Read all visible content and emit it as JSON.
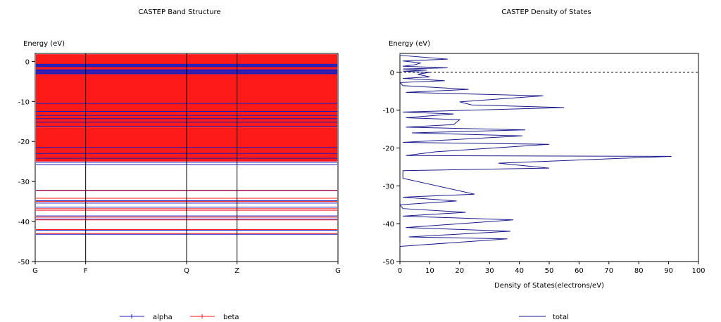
{
  "chart_data": [
    {
      "type": "line",
      "title": "CASTEP Band Structure",
      "ylabel": "Energy (eV)",
      "xlabel": "",
      "ylim": [
        -50,
        2
      ],
      "yticks": [
        0,
        -10,
        -20,
        -30,
        -40,
        -50
      ],
      "kpoints": [
        "G",
        "F",
        "Q",
        "Z",
        "G"
      ],
      "kpoint_positions": [
        0,
        1,
        3,
        4,
        6
      ],
      "series": [
        {
          "name": "alpha",
          "color": "#1f1fbf"
        },
        {
          "name": "beta",
          "color": "#ff1a1a"
        }
      ],
      "red_fill_bands": [
        [
          -4.5,
          1.8
        ],
        [
          -16.5,
          -4.5
        ],
        [
          -25,
          -16.5
        ]
      ],
      "alpha_levels": [
        -0.8,
        -1.2,
        -2.2,
        -2.6,
        -3.0,
        -10.5,
        -12.5,
        -13.5,
        -14.3,
        -15.2,
        -16.2,
        -21.5,
        -23.0,
        -24.2,
        -25.2,
        -25.8,
        -32.2,
        -34.8,
        -35.4,
        -36.4,
        -38.6,
        -39.4,
        -42.2,
        -43.2
      ],
      "beta_levels": [
        -32.3,
        -34.2,
        -35.0,
        -36.8,
        -37.2,
        -38.9,
        -39.6,
        -42.0,
        -43.0
      ]
    },
    {
      "type": "line",
      "title": "CASTEP Density of States",
      "ylabel": "Energy (eV)",
      "xlabel": "Density of States(electrons/eV)",
      "xlim": [
        0,
        100
      ],
      "ylim": [
        -50,
        5
      ],
      "xticks": [
        0,
        10,
        20,
        30,
        40,
        50,
        60,
        70,
        80,
        90,
        100
      ],
      "yticks": [
        0,
        -10,
        -20,
        -30,
        -40,
        -50
      ],
      "fermi_level": 0,
      "series": [
        {
          "name": "total",
          "color": "#1a1a8c",
          "x": [
            0,
            0,
            36,
            3,
            37,
            2,
            38,
            1,
            22,
            1,
            0,
            19,
            1,
            25,
            1,
            1,
            50,
            33,
            91,
            2,
            12,
            50,
            1,
            41,
            4,
            42,
            2,
            18,
            20,
            2,
            18,
            1,
            55,
            24,
            20,
            48,
            2,
            23,
            1,
            0,
            15,
            1,
            10,
            6,
            10,
            1,
            9,
            1,
            16,
            1,
            5,
            7,
            1,
            16,
            0,
            0
          ],
          "y": [
            -45,
            -46,
            -44,
            -43.5,
            -42,
            -41,
            -39,
            -38,
            -37,
            -36,
            -35,
            -34,
            -33,
            -32.2,
            -28,
            -26,
            -25.3,
            -24,
            -22.2,
            -22,
            -21,
            -19,
            -18.5,
            -16.8,
            -16,
            -15.2,
            -14.5,
            -13.8,
            -12.5,
            -12,
            -11,
            -10.5,
            -9.3,
            -8.6,
            -7.8,
            -6.2,
            -5.3,
            -4.5,
            -3.5,
            -2.7,
            -2.2,
            -1.6,
            -1.2,
            -0.5,
            0,
            0.3,
            0.6,
            0.9,
            1.2,
            1.6,
            2.0,
            2.5,
            3.0,
            3.5,
            4.5,
            5
          ]
        }
      ]
    }
  ]
}
